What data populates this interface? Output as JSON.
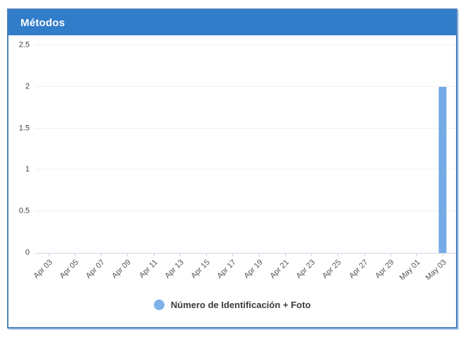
{
  "chart_data": {
    "type": "bar",
    "title": "Métodos",
    "categories": [
      "Apr 03",
      "Apr 05",
      "Apr 07",
      "Apr 09",
      "Apr 11",
      "Apr 13",
      "Apr 15",
      "Apr 17",
      "Apr 19",
      "Apr 21",
      "Apr 23",
      "Apr 25",
      "Apr 27",
      "Apr 29",
      "May 01",
      "May 03"
    ],
    "series": [
      {
        "name": "Número de Identificación + Foto",
        "color": "#74abe5",
        "values": [
          0,
          0,
          0,
          0,
          0,
          0,
          0,
          0,
          0,
          0,
          0,
          0,
          0,
          0,
          0,
          2
        ]
      }
    ],
    "xlabel": "",
    "ylabel": "",
    "ylim": [
      0,
      2.5
    ],
    "yticks": [
      "0",
      "0.5",
      "1",
      "1.5",
      "2",
      "2.5"
    ],
    "grid": true,
    "legend_position": "bottom"
  },
  "colors": {
    "header_bg": "#327dca",
    "header_text": "#ffffff",
    "panel_border": "#4c80bb",
    "panel_shadow": "#b5d0ec",
    "bar": "#74abe5",
    "legend_dot": "#7db2e8",
    "gridline": "#efefef",
    "axis_line": "#ccd7e8",
    "tick_mark": "#c6d2e4",
    "y_label_text": "#3f3f3f",
    "x_label_text": "#555555",
    "legend_text": "#3a3a3a"
  }
}
